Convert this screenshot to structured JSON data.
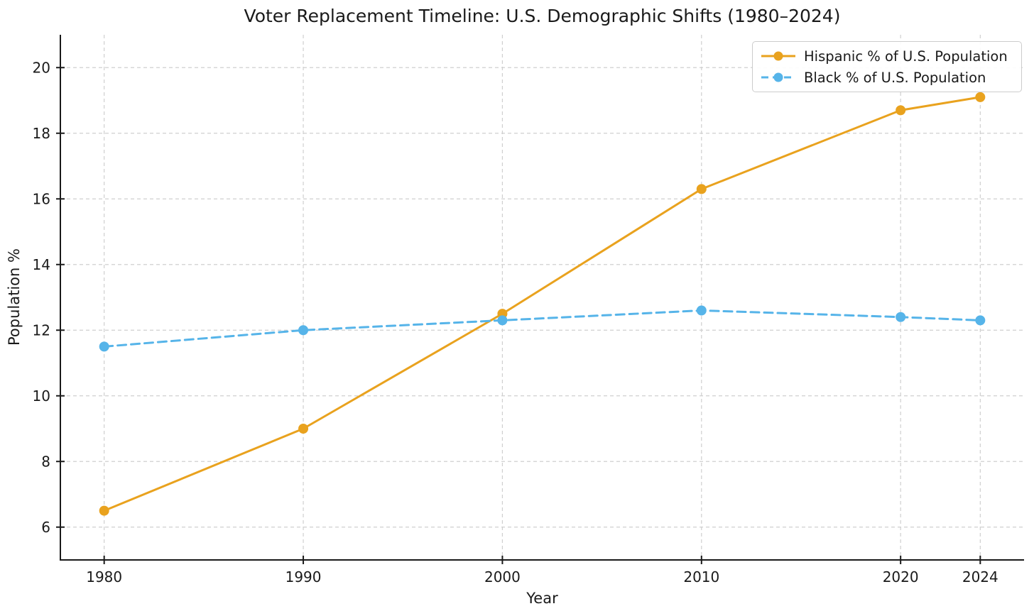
{
  "chart_data": {
    "type": "line",
    "title": "Voter Replacement Timeline: U.S. Demographic Shifts (1980–2024)",
    "xlabel": "Year",
    "ylabel": "Population %",
    "x": [
      1980,
      1990,
      2000,
      2010,
      2020,
      2024
    ],
    "x_tick_labels": [
      "1980",
      "1990",
      "2000",
      "2010",
      "2020",
      "2024"
    ],
    "y_ticks": [
      6,
      8,
      10,
      12,
      14,
      16,
      18,
      20
    ],
    "y_tick_labels": [
      "6",
      "8",
      "10",
      "12",
      "14",
      "16",
      "18",
      "20"
    ],
    "xlim": [
      1977.8,
      2026.2
    ],
    "ylim": [
      5,
      21
    ],
    "grid": true,
    "grid_style": "dashed",
    "legend_position": "upper right",
    "series": [
      {
        "name": "Hispanic % of U.S. Population",
        "values": [
          6.5,
          9.0,
          12.5,
          16.3,
          18.7,
          19.1
        ],
        "color": "#E9A21E",
        "line_style": "solid",
        "marker": "circle"
      },
      {
        "name": "Black % of U.S. Population",
        "values": [
          11.5,
          12.0,
          12.3,
          12.6,
          12.4,
          12.3
        ],
        "color": "#56B4E9",
        "line_style": "dashed",
        "marker": "circle"
      }
    ],
    "colors": {
      "grid": "#cfcfcf",
      "spine": "#1a1a1a",
      "text": "#1a1a1a",
      "background": "#ffffff"
    }
  }
}
